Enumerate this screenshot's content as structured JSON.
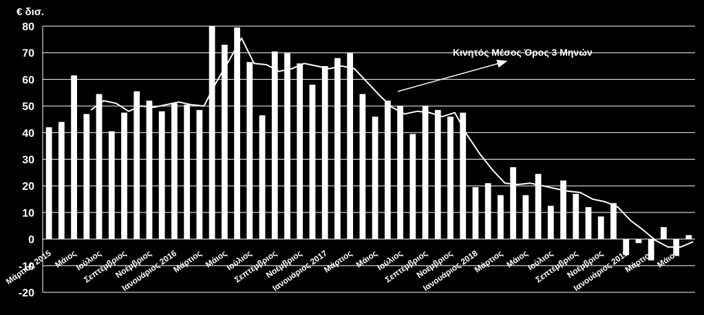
{
  "chart_data": {
    "type": "bar",
    "ylabel": "€ δισ.",
    "ylim": [
      -20,
      80
    ],
    "yticks": [
      80,
      70,
      60,
      50,
      40,
      30,
      20,
      10,
      0,
      -10,
      -20
    ],
    "grid": true,
    "colors": {
      "background": "#000000",
      "bars": "#ffffff",
      "line": "#ffffff",
      "grid": "#ffffff"
    },
    "x_tick_labels": [
      {
        "index": 0,
        "label": "Μάρτιος 2015"
      },
      {
        "index": 2,
        "label": "Μάιος"
      },
      {
        "index": 4,
        "label": "Ιούλιος"
      },
      {
        "index": 6,
        "label": "Σεπτέμβριος"
      },
      {
        "index": 8,
        "label": "Νοέμβριος"
      },
      {
        "index": 10,
        "label": "Ιανουάριος 2016"
      },
      {
        "index": 12,
        "label": "Μάρτιος"
      },
      {
        "index": 14,
        "label": "Μάιος"
      },
      {
        "index": 16,
        "label": "Ιούλιος"
      },
      {
        "index": 18,
        "label": "Σεπτέμβριος"
      },
      {
        "index": 20,
        "label": "Νοέμβριος"
      },
      {
        "index": 22,
        "label": "Ιανουάριος 2017"
      },
      {
        "index": 24,
        "label": "Μάρτιος"
      },
      {
        "index": 26,
        "label": "Μάιος"
      },
      {
        "index": 28,
        "label": "Ιούλιος"
      },
      {
        "index": 30,
        "label": "Σεπτέμβριος"
      },
      {
        "index": 32,
        "label": "Νοέμβριος"
      },
      {
        "index": 34,
        "label": "Ιανουάριος 2018"
      },
      {
        "index": 36,
        "label": "Μάρτιος"
      },
      {
        "index": 38,
        "label": "Μάιος"
      },
      {
        "index": 40,
        "label": "Ιούλιος"
      },
      {
        "index": 42,
        "label": "Σεπτέμβριος"
      },
      {
        "index": 44,
        "label": "Νοέμβριος"
      },
      {
        "index": 46,
        "label": "Ιανουάριος 2019"
      },
      {
        "index": 48,
        "label": "Μάρτιος"
      },
      {
        "index": 50,
        "label": "Μάιος"
      }
    ],
    "series": [
      {
        "type": "bar",
        "values": [
          42,
          44,
          61.5,
          47,
          54.5,
          40.5,
          47.5,
          55.5,
          52,
          48,
          51,
          50.5,
          48.5,
          80,
          73,
          79.5,
          66.5,
          46.5,
          70.5,
          70,
          66,
          58,
          65,
          68,
          70,
          54.5,
          46,
          52,
          50,
          39.5,
          50,
          48.5,
          46,
          47.5,
          19.5,
          21,
          16.5,
          27,
          16.5,
          24.5,
          12.5,
          22,
          17,
          12,
          8.5,
          13.5,
          -6,
          -1.5,
          -8,
          4.5,
          -6,
          1.5
        ]
      },
      {
        "name": "Κινητός Μέσος Όρος 3 Μηνών",
        "type": "line",
        "values": [
          null,
          null,
          null,
          48.5,
          52,
          51,
          48,
          50,
          49.5,
          50.5,
          51.5,
          50.5,
          50,
          59,
          67,
          75.5,
          66,
          65.5,
          63,
          64,
          66,
          65,
          64,
          65,
          64,
          59,
          54,
          49.5,
          47,
          48,
          47.5,
          46,
          47.5,
          39,
          32,
          26,
          21,
          20.5,
          21,
          20,
          19,
          18,
          17.5,
          15,
          14,
          12,
          7,
          3.5,
          -0.5,
          -3,
          -3,
          -1
        ]
      }
    ],
    "annotations": [
      {
        "text": "Κινητός  Μέσος Όρος  3 Μηνών",
        "arrow_to_index": 34
      }
    ]
  }
}
